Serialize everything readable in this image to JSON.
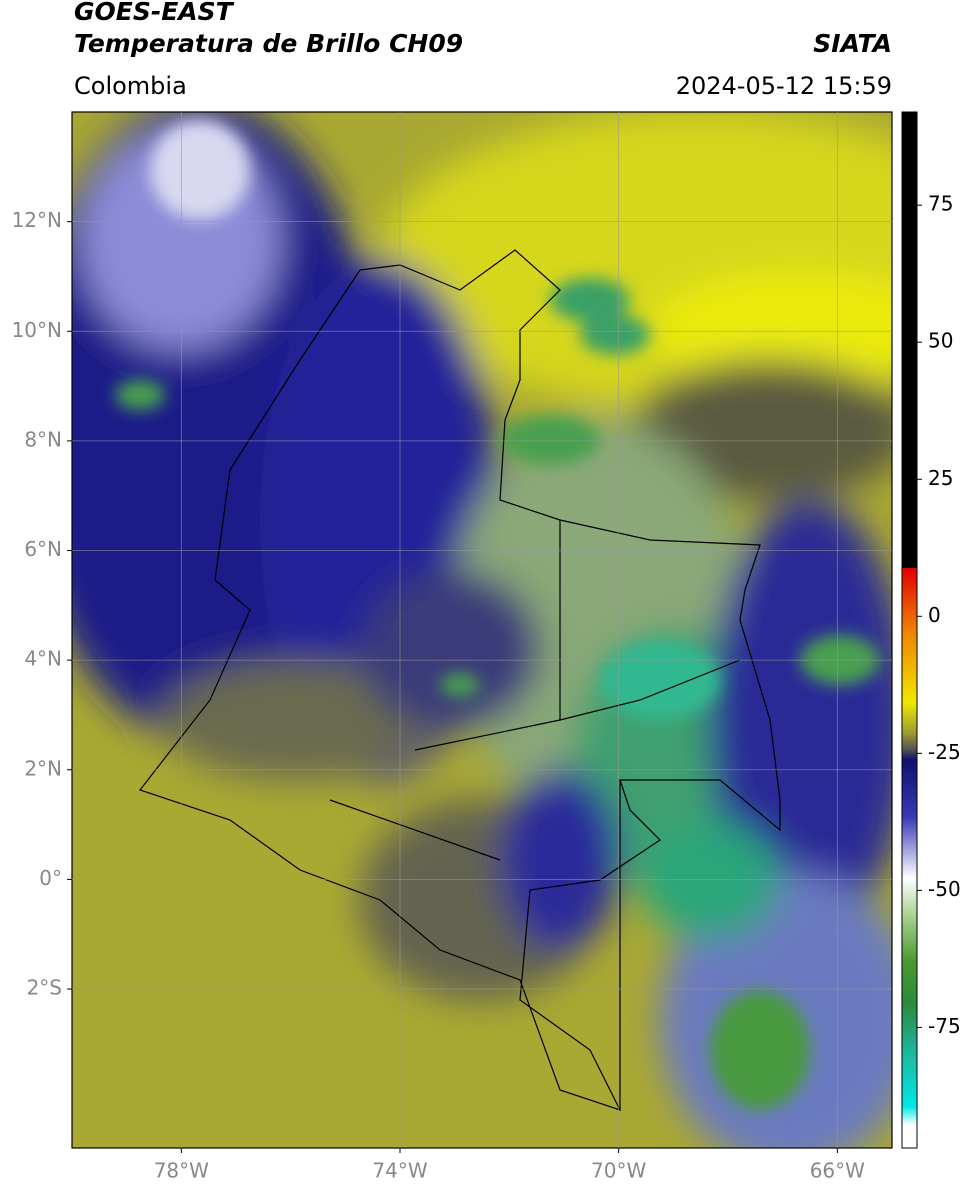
{
  "header": {
    "title_line1": "GOES-EAST",
    "title_line2": "Temperatura de Brillo CH09",
    "org": "SIATA",
    "region": "Colombia",
    "datetime": "2024-05-12 15:59"
  },
  "map": {
    "lon_range": [
      -80,
      -65
    ],
    "lat_range": [
      -4.9,
      14
    ],
    "lat_ticks": [
      {
        "value": 12,
        "label": "12°N"
      },
      {
        "value": 10,
        "label": "10°N"
      },
      {
        "value": 8,
        "label": "8°N"
      },
      {
        "value": 6,
        "label": "6°N"
      },
      {
        "value": 4,
        "label": "4°N"
      },
      {
        "value": 2,
        "label": "2°N"
      },
      {
        "value": 0,
        "label": "0°"
      },
      {
        "value": -2,
        "label": "2°S"
      }
    ],
    "lon_ticks": [
      {
        "value": -78,
        "label": "78°W"
      },
      {
        "value": -74,
        "label": "74°W"
      },
      {
        "value": -70,
        "label": "70°W"
      },
      {
        "value": -66,
        "label": "66°W"
      }
    ]
  },
  "colorbar": {
    "range": [
      -97,
      92
    ],
    "ticks": [
      75,
      50,
      25,
      0,
      -25,
      -50,
      -75
    ]
  }
}
